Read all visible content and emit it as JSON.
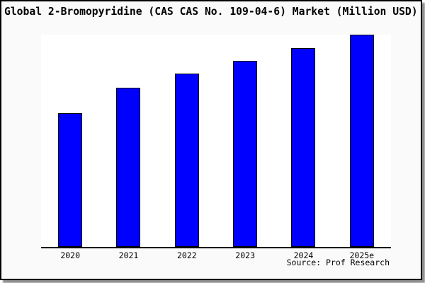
{
  "title": "Global 2-Bromopyridine (CAS CAS No. 109-04-6) Market (Million USD)",
  "source_note": "Source: Prof Research",
  "colors": {
    "bar_fill": "#0000ff",
    "bar_border": "#000000",
    "page_background": "#fafafa",
    "plot_background": "#ffffff",
    "axis_line": "#000000",
    "frame_border": "#000000",
    "frame_shadow": "#8f8f8f",
    "text": "#000000"
  },
  "chart_data": {
    "type": "bar",
    "title": "Global 2-Bromopyridine (CAS CAS No. 109-04-6) Market (Million USD)",
    "categories": [
      "2020",
      "2021",
      "2022",
      "2023",
      "2024",
      "2025e"
    ],
    "values": [
      62.9,
      75.1,
      81.6,
      87.7,
      93.7,
      100
    ],
    "values_note": "relative bar heights in percent of tallest bar; y-axis has no tick labels or gridlines in the image",
    "xlabel": "",
    "ylabel": "",
    "grid": false,
    "legend": false,
    "bar_color": "#0000ff",
    "source": "Source: Prof Research"
  }
}
